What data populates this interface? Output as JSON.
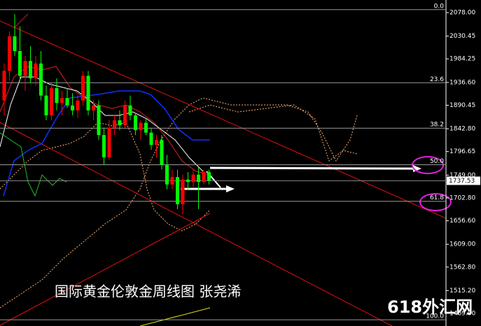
{
  "chart_data": {
    "type": "candlestick",
    "title": "国际黄金伦敦金周线图 张尧浠",
    "watermark": "618外汇网",
    "open": [
      1900,
      1960,
      2030,
      2000,
      1950,
      1980,
      1945,
      1975,
      1910,
      1870,
      1925,
      1895,
      1905,
      1890,
      1880,
      1900,
      1950,
      1880,
      1890,
      1830,
      1785,
      1845,
      1860,
      1850,
      1890,
      1870,
      1840,
      1855,
      1835,
      1810,
      1820,
      1770,
      1730,
      1745,
      1690,
      1740,
      1735,
      1750,
      1735,
      1755
    ],
    "high": [
      1975,
      2040,
      2075,
      2050,
      1990,
      2010,
      1990,
      2000,
      1930,
      1935,
      1945,
      1920,
      1925,
      1915,
      1910,
      1960,
      1960,
      1900,
      1900,
      1845,
      1860,
      1870,
      1880,
      1900,
      1910,
      1875,
      1860,
      1865,
      1845,
      1830,
      1830,
      1790,
      1760,
      1760,
      1750,
      1755,
      1760,
      1765,
      1760,
      1760
    ],
    "low": [
      1870,
      1940,
      1990,
      1940,
      1920,
      1935,
      1930,
      1900,
      1860,
      1860,
      1880,
      1870,
      1885,
      1870,
      1865,
      1890,
      1870,
      1860,
      1820,
      1770,
      1780,
      1830,
      1840,
      1845,
      1860,
      1830,
      1820,
      1830,
      1800,
      1785,
      1760,
      1720,
      1720,
      1680,
      1670,
      1720,
      1725,
      1680,
      1730,
      1730
    ],
    "close": [
      1960,
      2030,
      2000,
      1950,
      1980,
      1945,
      1975,
      1910,
      1870,
      1925,
      1895,
      1905,
      1890,
      1880,
      1900,
      1950,
      1880,
      1890,
      1830,
      1785,
      1845,
      1860,
      1850,
      1890,
      1870,
      1840,
      1855,
      1835,
      1810,
      1820,
      1770,
      1730,
      1745,
      1690,
      1740,
      1735,
      1750,
      1735,
      1755,
      1737.53
    ],
    "up_color": "#ff0000",
    "down_color": "#00ff00",
    "ylim": [
      1443.5,
      2103.5
    ],
    "yticks": [
      {
        "value": 2078,
        "label": "2078.00"
      },
      {
        "value": 2030.45,
        "label": "2030.45"
      },
      {
        "value": 1984.25,
        "label": "1984.25"
      },
      {
        "value": 1936.6,
        "label": "1936.60"
      },
      {
        "value": 1890.45,
        "label": "1890.45"
      },
      {
        "value": 1842.8,
        "label": "1842.80"
      },
      {
        "value": 1796.65,
        "label": "1796.65"
      },
      {
        "value": 1749,
        "label": "1749.00"
      },
      {
        "value": 1702.8,
        "label": "1702.80"
      },
      {
        "value": 1656.6,
        "label": "1656.60"
      },
      {
        "value": 1609,
        "label": "1609.00"
      },
      {
        "value": 1562.8,
        "label": "1562.80"
      },
      {
        "value": 1515.2,
        "label": "1515.20"
      },
      {
        "value": 1469,
        "label": "1469.00"
      }
    ],
    "levels": [
      {
        "label": "0.0",
        "value": 2084
      },
      {
        "label": "23.6",
        "value": 1936
      },
      {
        "label": "38.2",
        "value": 1844
      },
      {
        "label": "50.0",
        "value": 1770
      },
      {
        "label": "61.8",
        "value": 1696
      },
      {
        "label": "100.0",
        "value": 1456
      }
    ],
    "level_color": "#9a9a9a",
    "last_price": 1737.53
  }
}
